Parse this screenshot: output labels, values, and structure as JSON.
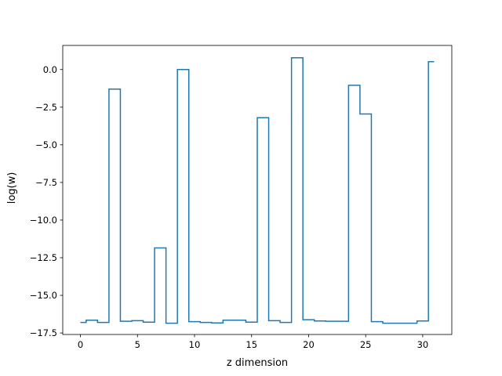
{
  "chart_data": {
    "type": "line",
    "drawstyle": "steps-mid",
    "title": "",
    "xlabel": "z dimension",
    "ylabel": "log(w)",
    "xlim": [
      -1.55,
      32.55
    ],
    "ylim": [
      -17.6,
      1.6
    ],
    "xticks": [
      0,
      5,
      10,
      15,
      20,
      25,
      30
    ],
    "xtick_labels": [
      "0",
      "5",
      "10",
      "15",
      "20",
      "25",
      "30"
    ],
    "yticks": [
      0.0,
      -2.5,
      -5.0,
      -7.5,
      -10.0,
      -12.5,
      -15.0,
      -17.5
    ],
    "ytick_labels": [
      "0.0",
      "−2.5",
      "−5.0",
      "−7.5",
      "−10.0",
      "−12.5",
      "−15.0",
      "−17.5"
    ],
    "grid": false,
    "series": [
      {
        "color": "#1f77b4",
        "x": [
          0,
          1,
          2,
          3,
          4,
          5,
          6,
          7,
          8,
          9,
          10,
          11,
          12,
          13,
          14,
          15,
          16,
          17,
          18,
          19,
          20,
          21,
          22,
          23,
          24,
          25,
          26,
          27,
          28,
          29,
          30,
          31
        ],
        "values": [
          -16.8,
          -16.65,
          -16.8,
          -1.3,
          -16.72,
          -16.68,
          -16.78,
          -11.85,
          -16.85,
          0.0,
          -16.75,
          -16.8,
          -16.83,
          -16.65,
          -16.65,
          -16.78,
          -3.2,
          -16.68,
          -16.8,
          0.78,
          -16.62,
          -16.7,
          -16.72,
          -16.72,
          -1.05,
          -2.95,
          -16.75,
          -16.85,
          -16.85,
          -16.85,
          -16.7,
          0.52
        ]
      }
    ]
  }
}
